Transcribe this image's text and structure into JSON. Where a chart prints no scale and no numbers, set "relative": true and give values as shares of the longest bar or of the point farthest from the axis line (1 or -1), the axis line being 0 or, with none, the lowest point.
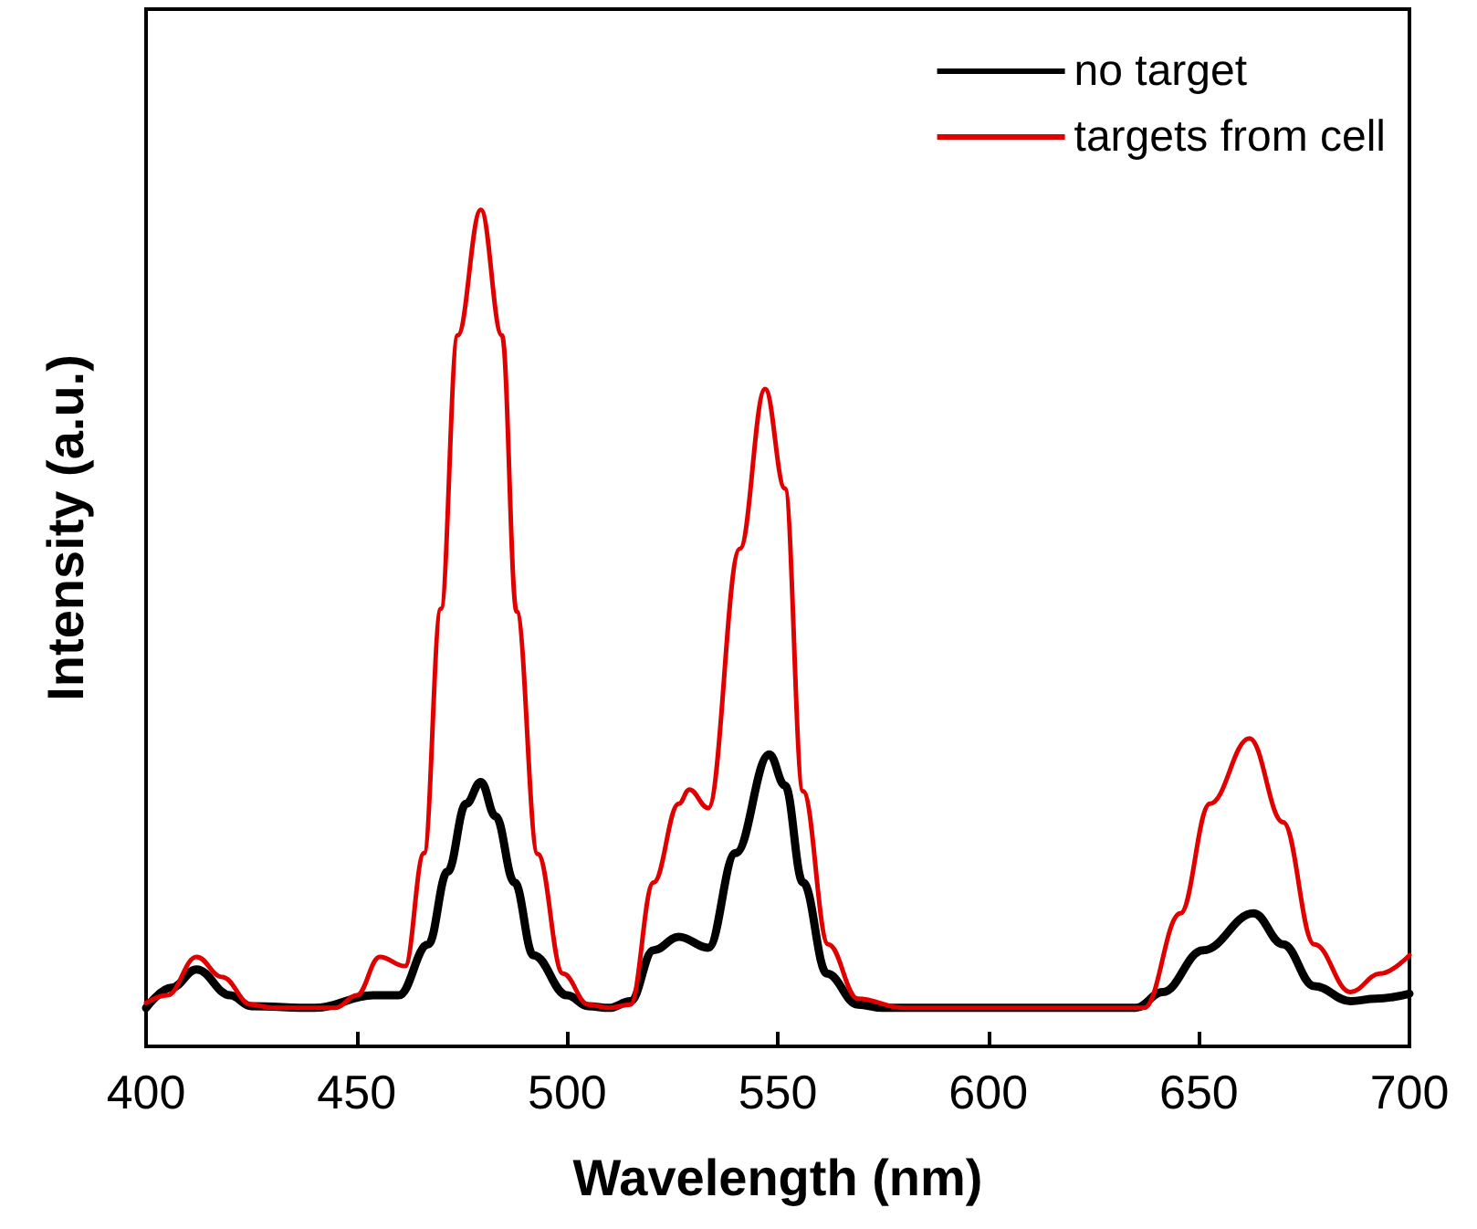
{
  "chart_data": {
    "type": "line",
    "xlabel": "Wavelength (nm)",
    "ylabel": "Intensity (a.u.)",
    "relative": true,
    "xlim": [
      400,
      700
    ],
    "xticks": [
      400,
      450,
      500,
      550,
      600,
      650,
      700
    ],
    "grid": false,
    "legend": "top right",
    "marker": "none",
    "line_style": "solid",
    "series": [
      {
        "name": "no target",
        "color": "#000000",
        "x": [
          400,
          406,
          412,
          420,
          425,
          440,
          454,
          460,
          467,
          471.6,
          476,
          479.5,
          483,
          487.5,
          492,
          500,
          505,
          510,
          515,
          520.5,
          526.5,
          533.5,
          540,
          548,
          551.7,
          556,
          561.7,
          569,
          575,
          600,
          635,
          641.4,
          651,
          663,
          670,
          677.4,
          686,
          692,
          700
        ],
        "values": [
          0.046,
          0.07,
          0.092,
          0.061,
          0.048,
          0.046,
          0.061,
          0.061,
          0.122,
          0.209,
          0.29,
          0.316,
          0.275,
          0.196,
          0.109,
          0.061,
          0.048,
          0.046,
          0.054,
          0.115,
          0.131,
          0.118,
          0.231,
          0.349,
          0.312,
          0.196,
          0.087,
          0.05,
          0.046,
          0.046,
          0.046,
          0.065,
          0.115,
          0.159,
          0.122,
          0.072,
          0.054,
          0.057,
          0.063
        ]
      },
      {
        "name": "targets from cell",
        "color": "#e00000",
        "x": [
          400,
          405,
          412,
          418,
          425,
          430,
          445,
          450,
          455.5,
          461.5,
          466,
          470,
          474,
          479.5,
          484.5,
          488,
          493,
          499,
          505,
          510,
          515,
          520.5,
          526.5,
          529,
          533.5,
          541,
          547,
          551.7,
          556,
          562,
          569,
          580,
          600,
          637,
          645.6,
          652.6,
          662,
          670,
          677.4,
          686,
          693,
          700
        ],
        "values": [
          0.052,
          0.061,
          0.107,
          0.083,
          0.05,
          0.046,
          0.046,
          0.061,
          0.107,
          0.096,
          0.231,
          0.523,
          0.85,
          1.0,
          0.85,
          0.52,
          0.23,
          0.087,
          0.05,
          0.046,
          0.05,
          0.196,
          0.29,
          0.307,
          0.285,
          0.595,
          0.786,
          0.667,
          0.305,
          0.122,
          0.057,
          0.046,
          0.046,
          0.046,
          0.159,
          0.29,
          0.368,
          0.268,
          0.122,
          0.065,
          0.087,
          0.109
        ]
      }
    ]
  }
}
